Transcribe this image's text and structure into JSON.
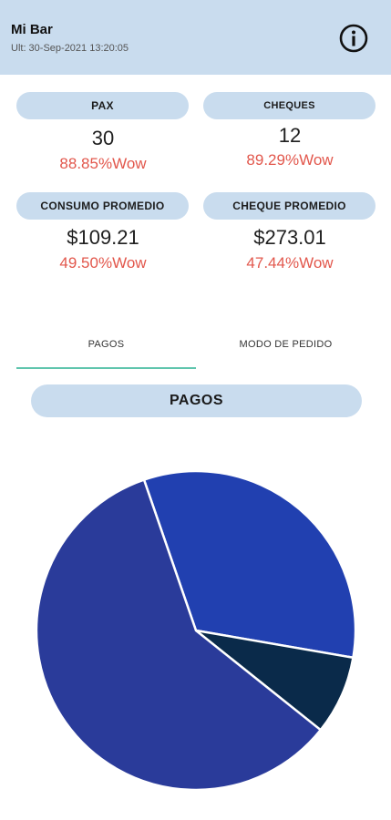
{
  "header": {
    "title": "Mi Bar",
    "subtitle": "Ult: 30-Sep-2021 13:20:05",
    "info_icon": "info-icon"
  },
  "stats": {
    "pax": {
      "label": "PAX",
      "value": "30",
      "change": "88.85%Wow"
    },
    "cheques": {
      "label": "CHEQUES",
      "value": "12",
      "change": "89.29%Wow"
    },
    "consumo_promedio": {
      "label": "CONSUMO PROMEDIO",
      "value": "$109.21",
      "change": "49.50%Wow"
    },
    "cheque_promedio": {
      "label": "CHEQUE PROMEDIO",
      "value": "$273.01",
      "change": "47.44%Wow"
    }
  },
  "tabs": [
    {
      "label": "PAGOS",
      "selected": true
    },
    {
      "label": "MODO DE PEDIDO",
      "selected": false
    }
  ],
  "section": {
    "title": "PAGOS"
  },
  "colors": {
    "header_bg": "#c9dcee",
    "pill_bg": "#c9dcee",
    "change_text": "#e2574c",
    "tab_indicator": "#5fc5ad"
  },
  "chart_data": {
    "type": "pie",
    "slices": [
      {
        "value": 33,
        "color": "#2140b0"
      },
      {
        "value": 8,
        "color": "#0a2a4a"
      },
      {
        "value": 59,
        "color": "#2a3b9a"
      }
    ],
    "start_angle_deg": -109,
    "legend": "none"
  }
}
